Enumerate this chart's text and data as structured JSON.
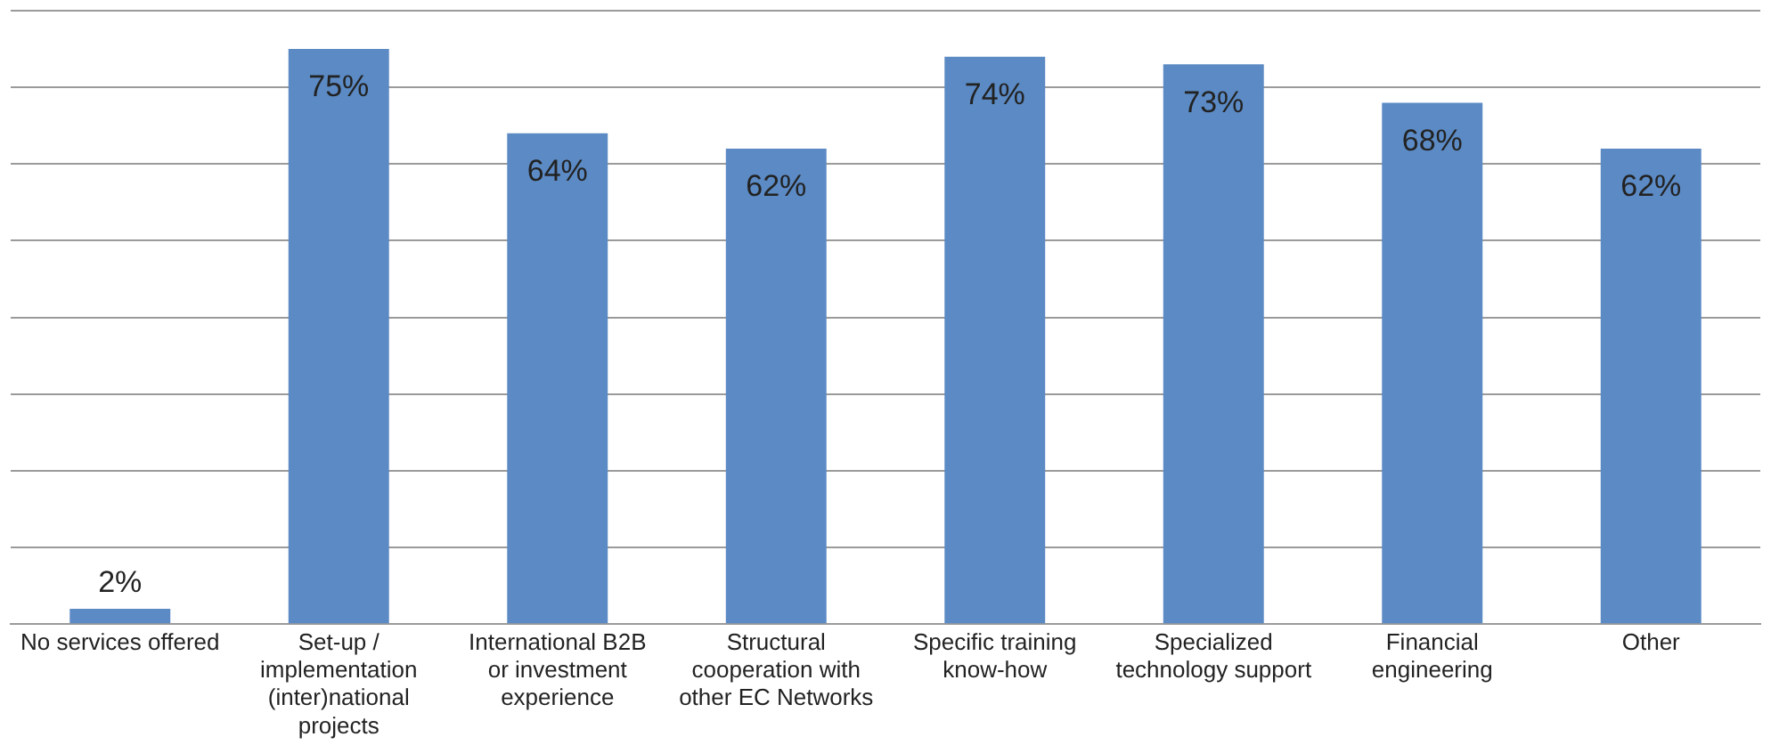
{
  "chart_data": {
    "type": "bar",
    "categories": [
      "No services offered",
      "Set-up / implementation (inter)national projects",
      "International B2B or investment experience",
      "Structural cooperation with other EC Networks",
      "Specific training know-how",
      "Specialized technology support",
      "Financial engineering",
      "Other"
    ],
    "values": [
      2,
      75,
      64,
      62,
      74,
      73,
      68,
      62
    ],
    "color": "#5b8ac4",
    "ylim": [
      0,
      80
    ],
    "yticks": [
      {
        "value": 0,
        "label": null
      },
      {
        "value": 10,
        "label": null
      },
      {
        "value": 20,
        "label": null
      },
      {
        "value": 30,
        "label": null
      },
      {
        "value": 40,
        "label": null
      },
      {
        "value": 50,
        "label": null
      },
      {
        "value": 60,
        "label": null
      },
      {
        "value": 70,
        "label": null
      },
      {
        "value": 80,
        "label": null
      }
    ],
    "value_labels": [
      "2%",
      "75%",
      "64%",
      "62%",
      "74%",
      "73%",
      "68%",
      "62%"
    ],
    "grid": "y",
    "tick_labels": "x",
    "legend": false
  }
}
